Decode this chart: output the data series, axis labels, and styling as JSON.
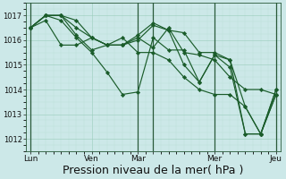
{
  "bg_color": "#cce8e8",
  "plot_bg_color": "#cce8e8",
  "grid_color_major": "#99ccbb",
  "grid_color_minor": "#b8ddd5",
  "line_color": "#1a5c2a",
  "marker_color": "#1a5c2a",
  "xlabel": "Pression niveau de la mer( hPa )",
  "xlabel_fontsize": 9,
  "ylim": [
    1011.5,
    1017.5
  ],
  "yticks": [
    1012,
    1013,
    1014,
    1015,
    1016,
    1017
  ],
  "ytick_fontsize": 6,
  "xtick_fontsize": 6.5,
  "day_vline_color": "#2a5a3a",
  "series": [
    [
      1016.5,
      1017.0,
      1017.0,
      1016.8,
      1016.1,
      1015.8,
      1015.8,
      1016.1,
      1015.7,
      1016.5,
      1015.5,
      1015.4,
      1015.2,
      1014.5,
      1014.0,
      1014.0,
      1013.8
    ],
    [
      1016.5,
      1017.0,
      1017.0,
      1016.5,
      1016.1,
      1015.8,
      1015.8,
      1016.2,
      1016.7,
      1016.4,
      1016.3,
      1015.5,
      1015.5,
      1015.2,
      1013.3,
      1012.2,
      1013.8
    ],
    [
      1016.5,
      1017.0,
      1017.0,
      1016.2,
      1015.6,
      1015.8,
      1015.8,
      1016.0,
      1016.6,
      1016.4,
      1015.0,
      1014.3,
      1015.4,
      1015.2,
      1012.2,
      1012.2,
      1014.0
    ],
    [
      1016.5,
      1017.0,
      1016.8,
      1016.1,
      1015.5,
      1014.7,
      1013.8,
      1013.9,
      1016.1,
      1015.6,
      1015.6,
      1014.3,
      1015.4,
      1014.9,
      1012.2,
      1012.2,
      1014.0
    ],
    [
      1016.5,
      1016.8,
      1015.8,
      1015.8,
      1016.1,
      1015.8,
      1016.1,
      1015.5,
      1015.5,
      1015.2,
      1014.5,
      1014.0,
      1013.8,
      1013.8,
      1013.3,
      1012.2,
      1013.8
    ]
  ],
  "n_points": 17,
  "xlim": [
    -0.3,
    16.3
  ],
  "xticks": [
    0,
    4.0,
    7.0,
    8.0,
    12.0,
    16.0
  ],
  "xtick_labels": [
    "Lun",
    "Ven",
    "Mar",
    "",
    "Mer",
    "Jeu"
  ],
  "day_vlines_x": [
    0,
    7.0,
    8.0,
    12.0,
    16.0
  ]
}
